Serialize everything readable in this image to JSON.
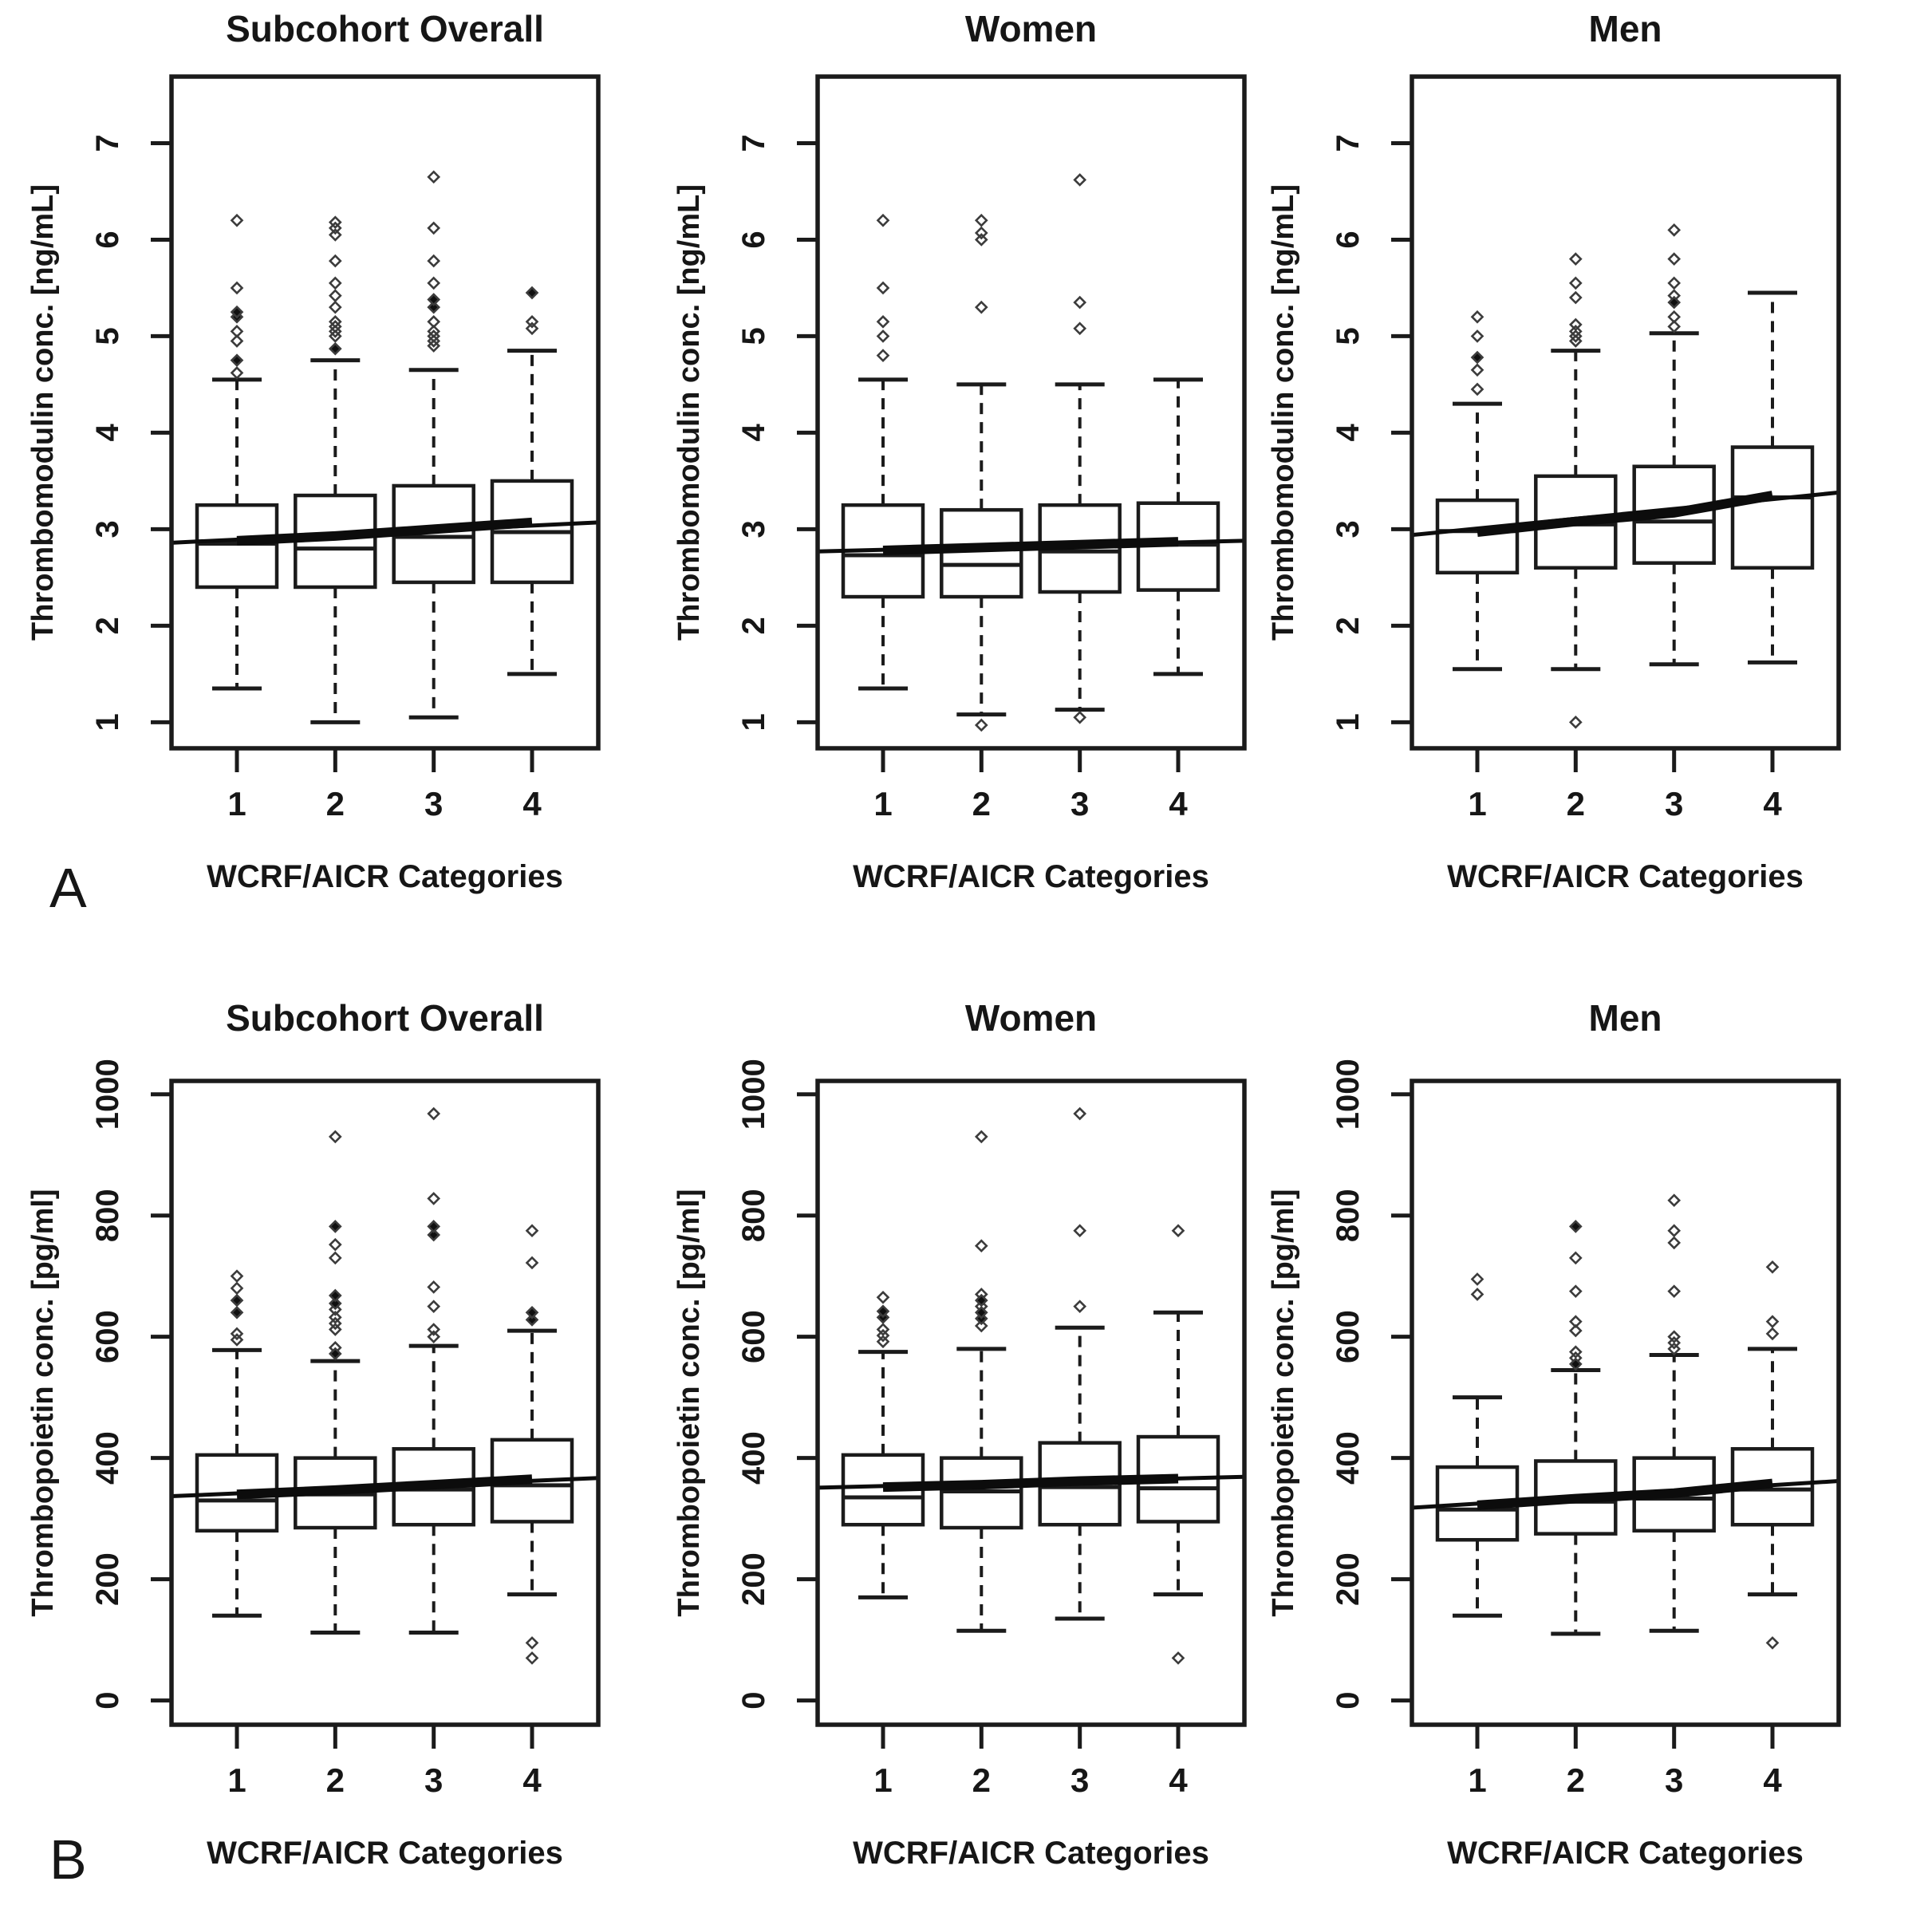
{
  "figure": {
    "row_labels": [
      "A",
      "B"
    ],
    "background": "#ffffff",
    "text_color": "#161616",
    "line_color": "#1b1b1b",
    "xlabel": "WCRF/AICR Categories",
    "categories": [
      "1",
      "2",
      "3",
      "4"
    ]
  },
  "chart_data": [
    {
      "type": "boxplot",
      "row": "A",
      "col": 0,
      "title": "Subcohort Overall",
      "ylabel": "Thrombomodulin conc. [ng/mL]",
      "xlabel": "WCRF/AICR Categories",
      "categories": [
        "1",
        "2",
        "3",
        "4"
      ],
      "yticks": [
        1,
        2,
        3,
        4,
        5,
        6,
        7
      ],
      "ylim": [
        0.73,
        7.69
      ],
      "grid": false,
      "boxes": [
        {
          "category": "1",
          "whisker_low": 1.35,
          "q1": 2.4,
          "median": 2.85,
          "q3": 3.25,
          "whisker_high": 4.55,
          "outliers_open": [
            4.62,
            4.95,
            5.05,
            5.5,
            6.2
          ],
          "outliers_filled": [
            4.75,
            5.2,
            5.25
          ]
        },
        {
          "category": "2",
          "whisker_low": 1.0,
          "q1": 2.4,
          "median": 2.8,
          "q3": 3.35,
          "whisker_high": 4.75,
          "outliers_open": [
            5.0,
            5.05,
            5.1,
            5.15,
            5.3,
            5.42,
            5.55,
            5.78,
            6.05,
            6.12,
            6.18
          ],
          "outliers_filled": [
            4.87
          ]
        },
        {
          "category": "3",
          "whisker_low": 1.05,
          "q1": 2.45,
          "median": 2.92,
          "q3": 3.45,
          "whisker_high": 4.65,
          "outliers_open": [
            4.9,
            4.95,
            5.0,
            5.05,
            5.15,
            5.55,
            5.78,
            6.12,
            6.65
          ],
          "outliers_filled": [
            5.3,
            5.38
          ]
        },
        {
          "category": "4",
          "whisker_low": 1.5,
          "q1": 2.45,
          "median": 2.97,
          "q3": 3.5,
          "whisker_high": 4.85,
          "outliers_open": [
            5.08,
            5.15
          ],
          "outliers_filled": [
            5.45
          ]
        }
      ],
      "category_means_line": [
        2.88,
        2.93,
        3.0,
        3.07
      ],
      "trend_line": {
        "left": 2.86,
        "right": 3.07
      }
    },
    {
      "type": "boxplot",
      "row": "A",
      "col": 1,
      "title": "Women",
      "ylabel": "Thrombomodulin conc. [ng/mL]",
      "xlabel": "WCRF/AICR Categories",
      "categories": [
        "1",
        "2",
        "3",
        "4"
      ],
      "yticks": [
        1,
        2,
        3,
        4,
        5,
        6,
        7
      ],
      "ylim": [
        0.73,
        7.69
      ],
      "grid": false,
      "boxes": [
        {
          "category": "1",
          "whisker_low": 1.35,
          "q1": 2.3,
          "median": 2.73,
          "q3": 3.25,
          "whisker_high": 4.55,
          "outliers_open": [
            4.8,
            5.0,
            5.15,
            5.5,
            6.2
          ],
          "outliers_filled": []
        },
        {
          "category": "2",
          "whisker_low": 1.08,
          "q1": 2.3,
          "median": 2.63,
          "q3": 3.2,
          "whisker_high": 4.5,
          "outliers_open": [
            0.97,
            5.3,
            6.0,
            6.07,
            6.2
          ],
          "outliers_filled": []
        },
        {
          "category": "3",
          "whisker_low": 1.13,
          "q1": 2.35,
          "median": 2.77,
          "q3": 3.25,
          "whisker_high": 4.5,
          "outliers_open": [
            1.05,
            5.08,
            5.35,
            6.62
          ],
          "outliers_filled": []
        },
        {
          "category": "4",
          "whisker_low": 1.5,
          "q1": 2.37,
          "median": 2.84,
          "q3": 3.27,
          "whisker_high": 4.55,
          "outliers_open": [],
          "outliers_filled": []
        }
      ],
      "category_means_line": [
        2.78,
        2.81,
        2.84,
        2.87
      ],
      "trend_line": {
        "left": 2.77,
        "right": 2.88
      }
    },
    {
      "type": "boxplot",
      "row": "A",
      "col": 2,
      "title": "Men",
      "ylabel": "Thrombomodulin conc. [ng/mL]",
      "xlabel": "WCRF/AICR Categories",
      "categories": [
        "1",
        "2",
        "3",
        "4"
      ],
      "yticks": [
        1,
        2,
        3,
        4,
        5,
        6,
        7
      ],
      "ylim": [
        0.73,
        7.69
      ],
      "grid": false,
      "boxes": [
        {
          "category": "1",
          "whisker_low": 1.55,
          "q1": 2.55,
          "median": 2.98,
          "q3": 3.3,
          "whisker_high": 4.3,
          "outliers_open": [
            4.45,
            4.65,
            5.0,
            5.2
          ],
          "outliers_filled": [
            4.78
          ]
        },
        {
          "category": "2",
          "whisker_low": 1.55,
          "q1": 2.6,
          "median": 3.05,
          "q3": 3.55,
          "whisker_high": 4.85,
          "outliers_open": [
            1.0,
            4.95,
            5.0,
            5.05,
            5.12,
            5.4,
            5.55,
            5.8
          ],
          "outliers_filled": []
        },
        {
          "category": "3",
          "whisker_low": 1.6,
          "q1": 2.65,
          "median": 3.08,
          "q3": 3.65,
          "whisker_high": 5.03,
          "outliers_open": [
            5.1,
            5.2,
            5.42,
            5.55,
            5.8,
            6.1
          ],
          "outliers_filled": [
            5.35
          ]
        },
        {
          "category": "4",
          "whisker_low": 1.62,
          "q1": 2.6,
          "median": 3.33,
          "q3": 3.85,
          "whisker_high": 5.45,
          "outliers_open": [],
          "outliers_filled": []
        }
      ],
      "category_means_line": [
        2.97,
        3.08,
        3.17,
        3.35
      ],
      "trend_line": {
        "left": 2.94,
        "right": 3.38
      }
    },
    {
      "type": "boxplot",
      "row": "B",
      "col": 0,
      "title": "Subcohort Overall",
      "ylabel": "Thrombopoietin conc. [pg/ml]",
      "xlabel": "WCRF/AICR Categories",
      "categories": [
        "1",
        "2",
        "3",
        "4"
      ],
      "yticks": [
        0,
        200,
        400,
        600,
        800,
        1000
      ],
      "ylim": [
        -40,
        1022
      ],
      "grid": false,
      "boxes": [
        {
          "category": "1",
          "whisker_low": 140,
          "q1": 280,
          "median": 330,
          "q3": 405,
          "whisker_high": 578,
          "outliers_open": [
            595,
            605,
            680,
            700
          ],
          "outliers_filled": [
            640,
            660
          ]
        },
        {
          "category": "2",
          "whisker_low": 112,
          "q1": 285,
          "median": 340,
          "q3": 400,
          "whisker_high": 560,
          "outliers_open": [
            582,
            612,
            622,
            632,
            645,
            730,
            752,
            930
          ],
          "outliers_filled": [
            572,
            655,
            668,
            782
          ]
        },
        {
          "category": "3",
          "whisker_low": 112,
          "q1": 290,
          "median": 348,
          "q3": 415,
          "whisker_high": 585,
          "outliers_open": [
            600,
            612,
            650,
            682,
            828,
            968
          ],
          "outliers_filled": [
            768,
            782
          ]
        },
        {
          "category": "4",
          "whisker_low": 175,
          "q1": 295,
          "median": 355,
          "q3": 430,
          "whisker_high": 610,
          "outliers_open": [
            70,
            95,
            722,
            775
          ],
          "outliers_filled": [
            628,
            640
          ]
        }
      ],
      "category_means_line": [
        340,
        347,
        356,
        365
      ],
      "trend_line": {
        "left": 337,
        "right": 367
      }
    },
    {
      "type": "boxplot",
      "row": "B",
      "col": 1,
      "title": "Women",
      "ylabel": "Thrombopoietin conc. [pg/ml]",
      "xlabel": "WCRF/AICR Categories",
      "categories": [
        "1",
        "2",
        "3",
        "4"
      ],
      "yticks": [
        0,
        200,
        400,
        600,
        800,
        1000
      ],
      "ylim": [
        -40,
        1022
      ],
      "grid": false,
      "boxes": [
        {
          "category": "1",
          "whisker_low": 170,
          "q1": 290,
          "median": 335,
          "q3": 405,
          "whisker_high": 575,
          "outliers_open": [
            592,
            602,
            612,
            665
          ],
          "outliers_filled": [
            632,
            642
          ]
        },
        {
          "category": "2",
          "whisker_low": 115,
          "q1": 285,
          "median": 345,
          "q3": 400,
          "whisker_high": 580,
          "outliers_open": [
            618,
            650,
            670,
            750,
            930
          ],
          "outliers_filled": [
            630,
            640,
            660
          ]
        },
        {
          "category": "3",
          "whisker_low": 135,
          "q1": 290,
          "median": 352,
          "q3": 425,
          "whisker_high": 615,
          "outliers_open": [
            650,
            775,
            968
          ],
          "outliers_filled": []
        },
        {
          "category": "4",
          "whisker_low": 175,
          "q1": 295,
          "median": 350,
          "q3": 435,
          "whisker_high": 640,
          "outliers_open": [
            70,
            775
          ],
          "outliers_filled": []
        }
      ],
      "category_means_line": [
        352,
        356,
        362,
        366
      ],
      "trend_line": {
        "left": 351,
        "right": 369
      }
    },
    {
      "type": "boxplot",
      "row": "B",
      "col": 2,
      "title": "Men",
      "ylabel": "Thrombopoietin conc. [pg/ml]",
      "xlabel": "WCRF/AICR Categories",
      "categories": [
        "1",
        "2",
        "3",
        "4"
      ],
      "yticks": [
        0,
        200,
        400,
        600,
        800,
        1000
      ],
      "ylim": [
        -40,
        1022
      ],
      "grid": false,
      "boxes": [
        {
          "category": "1",
          "whisker_low": 140,
          "q1": 265,
          "median": 315,
          "q3": 385,
          "whisker_high": 500,
          "outliers_open": [
            670,
            695
          ],
          "outliers_filled": []
        },
        {
          "category": "2",
          "whisker_low": 110,
          "q1": 275,
          "median": 328,
          "q3": 395,
          "whisker_high": 545,
          "outliers_open": [
            565,
            575,
            610,
            625,
            675,
            730
          ],
          "outliers_filled": [
            555,
            782
          ]
        },
        {
          "category": "3",
          "whisker_low": 115,
          "q1": 280,
          "median": 333,
          "q3": 400,
          "whisker_high": 570,
          "outliers_open": [
            580,
            590,
            600,
            675,
            755,
            775,
            825
          ],
          "outliers_filled": []
        },
        {
          "category": "4",
          "whisker_low": 175,
          "q1": 290,
          "median": 348,
          "q3": 415,
          "whisker_high": 580,
          "outliers_open": [
            95,
            605,
            625,
            715
          ],
          "outliers_filled": []
        }
      ],
      "category_means_line": [
        322,
        333,
        342,
        358
      ],
      "trend_line": {
        "left": 318,
        "right": 362
      }
    }
  ]
}
